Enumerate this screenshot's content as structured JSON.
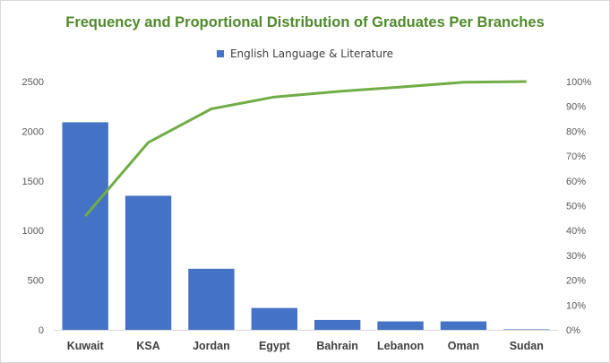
{
  "chart_data": {
    "type": "bar",
    "title": "Frequency and Proportional Distribution of Graduates Per Branches",
    "categories": [
      "Kuwait",
      "KSA",
      "Jordan",
      "Egypt",
      "Bahrain",
      "Lebanon",
      "Oman",
      "Sudan"
    ],
    "series": [
      {
        "name": "English Language & Literature",
        "type": "bar",
        "axis": "primary",
        "values": [
          2090,
          1350,
          615,
          220,
          100,
          85,
          85,
          5
        ],
        "color": "#4472c4"
      },
      {
        "type": "line",
        "axis": "secondary",
        "values": [
          45.8,
          75.5,
          89.0,
          93.8,
          96.0,
          97.8,
          99.7,
          100.0
        ],
        "color": "#70ad47"
      }
    ],
    "ylim": [
      0,
      2500
    ],
    "yticks": [
      "0",
      "500",
      "1000",
      "1500",
      "2000",
      "2500"
    ],
    "y2lim": [
      0,
      100
    ],
    "y2ticks": [
      "0%",
      "10%",
      "20%",
      "30%",
      "40%",
      "50%",
      "60%",
      "70%",
      "80%",
      "90%",
      "100%"
    ],
    "legend_position": "top",
    "grid": false
  }
}
